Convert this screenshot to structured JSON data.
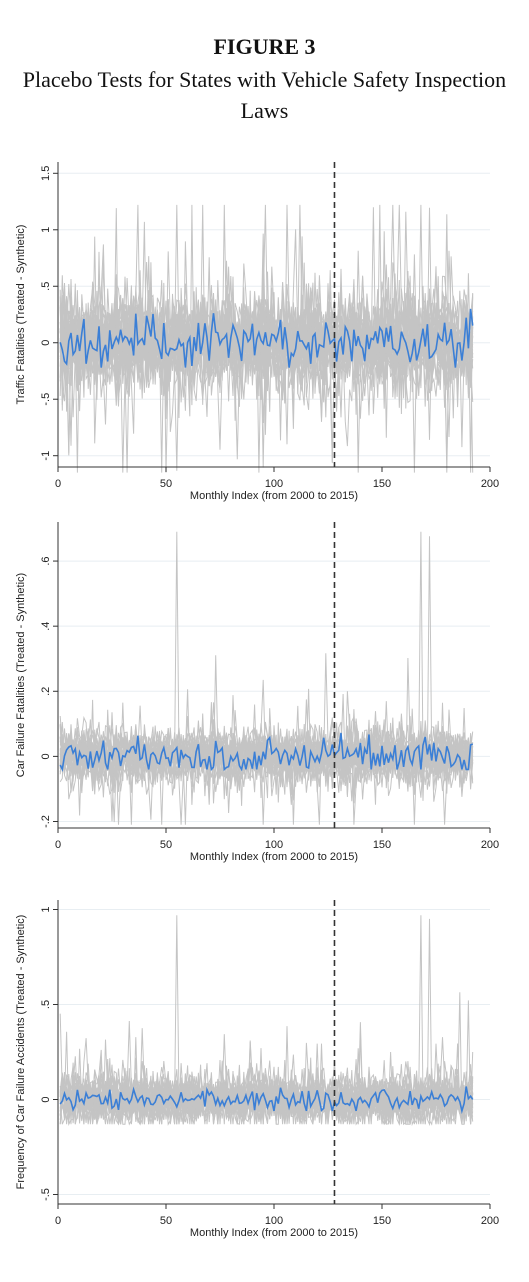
{
  "figure": {
    "label": "FIGURE 3",
    "title": "Placebo Tests for States with Vehicle Safety Inspection Laws"
  },
  "colors": {
    "treated": "#3b7fd6",
    "placebo": "#c4c4c4",
    "gridline": "#e8eef2",
    "axis": "#333333",
    "vline": "#333333"
  },
  "chart_data": [
    {
      "type": "line",
      "xlabel": "Monthly Index (from 2000 to 2015)",
      "ylabel": "Traffic Fatalities (Treated - Synthetic)",
      "xlim": [
        0,
        200
      ],
      "ylim": [
        -1.1,
        1.6
      ],
      "xticks": [
        0,
        50,
        100,
        150,
        200
      ],
      "yticks": [
        -1,
        -0.5,
        0,
        0.5,
        1,
        1.5
      ],
      "ytick_labels": [
        "-1",
        "-.5",
        "0",
        ".5",
        "1",
        "1.5"
      ],
      "vline_x": 128,
      "n_months": 192,
      "placebo_series_count": 30,
      "placebo_spread": 0.32,
      "placebo_range": [
        -1.15,
        1.22
      ],
      "treated_range": [
        -0.22,
        0.3
      ]
    },
    {
      "type": "line",
      "xlabel": "Monthly Index (from 2000 to 2015)",
      "ylabel": "Car Failure Fatalities (Treated - Synthetic)",
      "xlim": [
        0,
        200
      ],
      "ylim": [
        -0.22,
        0.72
      ],
      "xticks": [
        0,
        50,
        100,
        150,
        200
      ],
      "yticks": [
        -0.2,
        0,
        0.2,
        0.4,
        0.6
      ],
      "ytick_labels": [
        "-.2",
        "0",
        ".2",
        ".4",
        ".6"
      ],
      "vline_x": 128,
      "n_months": 192,
      "placebo_series_count": 30,
      "placebo_spread": 0.06,
      "placebo_range": [
        -0.21,
        0.69
      ],
      "treated_range": [
        -0.04,
        0.08
      ]
    },
    {
      "type": "line",
      "xlabel": "Monthly Index (from 2000 to 2015)",
      "ylabel": "Frequency of Car Failure Accidents (Treated - Synthetic)",
      "xlim": [
        0,
        200
      ],
      "ylim": [
        -0.55,
        1.05
      ],
      "xticks": [
        0,
        50,
        100,
        150,
        200
      ],
      "yticks": [
        -0.5,
        0,
        0.5,
        1
      ],
      "ytick_labels": [
        "-.5",
        "0",
        ".5",
        "1"
      ],
      "vline_x": 128,
      "n_months": 192,
      "placebo_series_count": 30,
      "placebo_spread": 0.09,
      "placebo_range": [
        -0.13,
        0.97
      ],
      "treated_range": [
        -0.06,
        0.08
      ]
    }
  ]
}
